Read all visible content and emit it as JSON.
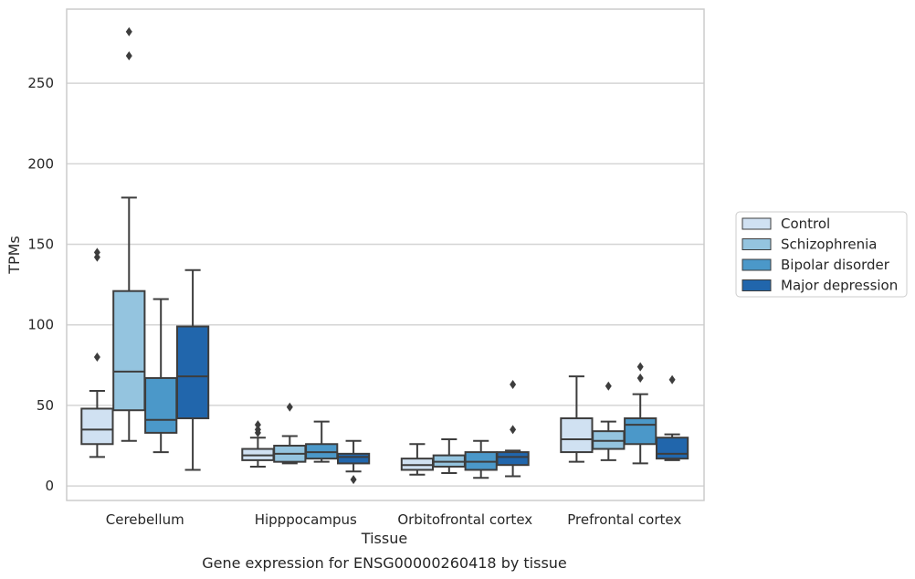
{
  "chart_data": {
    "type": "box",
    "caption": "Gene expression for ENSG00000260418 by tissue",
    "xlabel": "Tissue",
    "ylabel": "TPMs",
    "ylim": [
      -9,
      296
    ],
    "yticks": [
      0,
      50,
      100,
      150,
      200,
      250
    ],
    "grid": true,
    "legend_position": "right",
    "categories": [
      "Cerebellum",
      "Hipppocampus",
      "Orbitofrontal cortex",
      "Prefrontal cortex"
    ],
    "series": [
      {
        "name": "Control",
        "color": "#d0e1f2",
        "boxes": [
          {
            "whislo": 18,
            "q1": 26,
            "med": 35,
            "q3": 48,
            "whishi": 59,
            "fliers": [
              80,
              142,
              145
            ]
          },
          {
            "whislo": 12,
            "q1": 16,
            "med": 19,
            "q3": 23,
            "whishi": 30,
            "fliers": [
              33,
              35,
              38
            ]
          },
          {
            "whislo": 7,
            "q1": 10,
            "med": 13,
            "q3": 17,
            "whishi": 26,
            "fliers": []
          },
          {
            "whislo": 15,
            "q1": 21,
            "med": 29,
            "q3": 42,
            "whishi": 68,
            "fliers": []
          }
        ]
      },
      {
        "name": "Schizophrenia",
        "color": "#94c4df",
        "boxes": [
          {
            "whislo": 28,
            "q1": 47,
            "med": 71,
            "q3": 121,
            "whishi": 179,
            "fliers": [
              267,
              282
            ]
          },
          {
            "whislo": 14,
            "q1": 15,
            "med": 20,
            "q3": 25,
            "whishi": 31,
            "fliers": [
              49
            ]
          },
          {
            "whislo": 8,
            "q1": 12,
            "med": 15,
            "q3": 19,
            "whishi": 29,
            "fliers": []
          },
          {
            "whislo": 16,
            "q1": 23,
            "med": 28,
            "q3": 34,
            "whishi": 40,
            "fliers": [
              62
            ]
          }
        ]
      },
      {
        "name": "Bipolar disorder",
        "color": "#4b98c9",
        "boxes": [
          {
            "whislo": 21,
            "q1": 33,
            "med": 41,
            "q3": 67,
            "whishi": 116,
            "fliers": []
          },
          {
            "whislo": 15,
            "q1": 17,
            "med": 21,
            "q3": 26,
            "whishi": 40,
            "fliers": []
          },
          {
            "whislo": 5,
            "q1": 10,
            "med": 15,
            "q3": 21,
            "whishi": 28,
            "fliers": []
          },
          {
            "whislo": 14,
            "q1": 26,
            "med": 38,
            "q3": 42,
            "whishi": 57,
            "fliers": [
              67,
              74
            ]
          }
        ]
      },
      {
        "name": "Major depression",
        "color": "#2166ac",
        "boxes": [
          {
            "whislo": 10,
            "q1": 42,
            "med": 68,
            "q3": 99,
            "whishi": 134,
            "fliers": []
          },
          {
            "whislo": 9,
            "q1": 14,
            "med": 18,
            "q3": 20,
            "whishi": 28,
            "fliers": [
              4
            ]
          },
          {
            "whislo": 6,
            "q1": 13,
            "med": 18,
            "q3": 21,
            "whishi": 22,
            "fliers": [
              35,
              63
            ]
          },
          {
            "whislo": 16,
            "q1": 17,
            "med": 20,
            "q3": 30,
            "whishi": 32,
            "fliers": [
              66
            ]
          }
        ]
      }
    ]
  }
}
